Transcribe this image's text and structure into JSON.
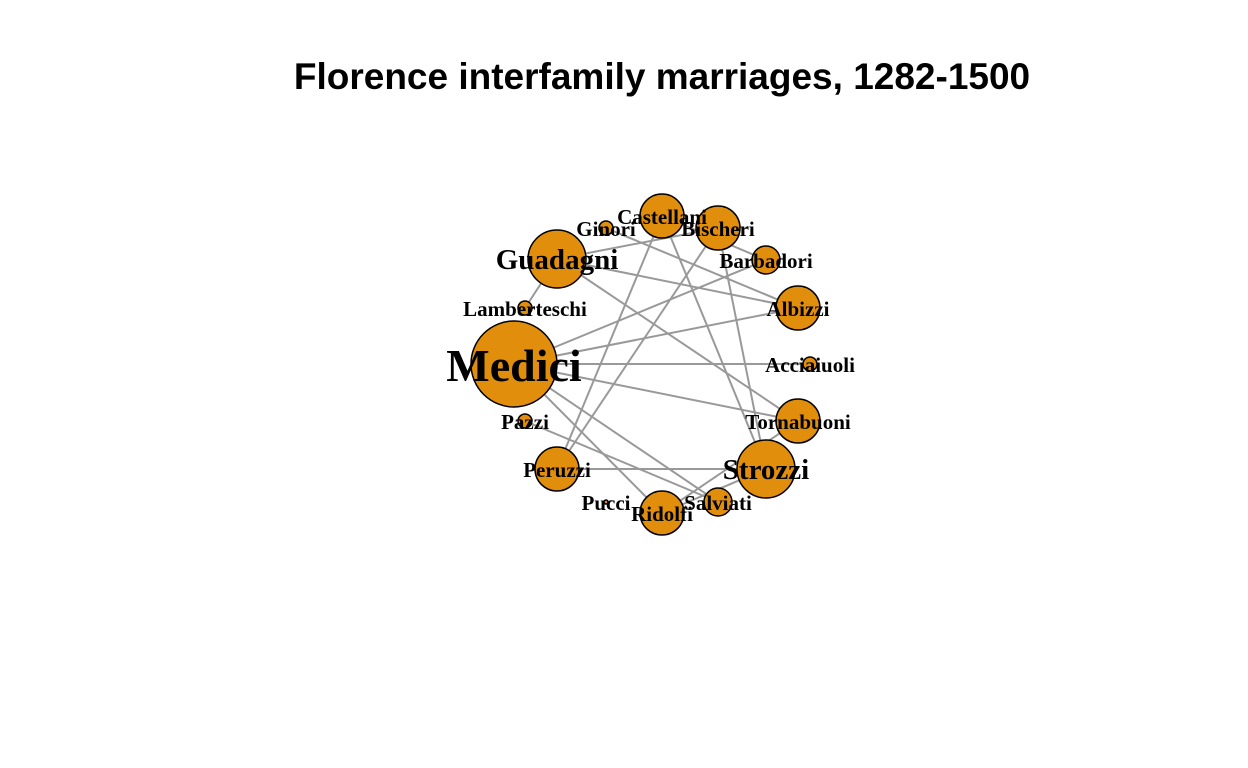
{
  "title": "Florence interfamily marriages, 1282-1500",
  "colors": {
    "node_fill": "#e08e0b",
    "node_stroke": "#000000",
    "edge": "#999999",
    "background": "#ffffff"
  },
  "nodes": [
    {
      "id": "Acciaiuoli",
      "label": "Acciaiuoli"
    },
    {
      "id": "Albizzi",
      "label": "Albizzi"
    },
    {
      "id": "Barbadori",
      "label": "Barbadori"
    },
    {
      "id": "Bischeri",
      "label": "Bischeri"
    },
    {
      "id": "Castellani",
      "label": "Castellani"
    },
    {
      "id": "Ginori",
      "label": "Ginori"
    },
    {
      "id": "Guadagni",
      "label": "Guadagni"
    },
    {
      "id": "Lamberteschi",
      "label": "Lamberteschi"
    },
    {
      "id": "Medici",
      "label": "Medici"
    },
    {
      "id": "Pazzi",
      "label": "Pazzi"
    },
    {
      "id": "Peruzzi",
      "label": "Peruzzi"
    },
    {
      "id": "Pucci",
      "label": "Pucci"
    },
    {
      "id": "Ridolfi",
      "label": "Ridolfi"
    },
    {
      "id": "Salviati",
      "label": "Salviati"
    },
    {
      "id": "Strozzi",
      "label": "Strozzi"
    },
    {
      "id": "Tornabuoni",
      "label": "Tornabuoni"
    }
  ],
  "edges": [
    [
      "Acciaiuoli",
      "Medici"
    ],
    [
      "Albizzi",
      "Ginori"
    ],
    [
      "Albizzi",
      "Guadagni"
    ],
    [
      "Albizzi",
      "Medici"
    ],
    [
      "Barbadori",
      "Castellani"
    ],
    [
      "Barbadori",
      "Medici"
    ],
    [
      "Bischeri",
      "Guadagni"
    ],
    [
      "Bischeri",
      "Peruzzi"
    ],
    [
      "Bischeri",
      "Strozzi"
    ],
    [
      "Castellani",
      "Peruzzi"
    ],
    [
      "Castellani",
      "Strozzi"
    ],
    [
      "Guadagni",
      "Lamberteschi"
    ],
    [
      "Guadagni",
      "Tornabuoni"
    ],
    [
      "Medici",
      "Ridolfi"
    ],
    [
      "Medici",
      "Salviati"
    ],
    [
      "Medici",
      "Tornabuoni"
    ],
    [
      "Pazzi",
      "Salviati"
    ],
    [
      "Peruzzi",
      "Strozzi"
    ],
    [
      "Ridolfi",
      "Strozzi"
    ],
    [
      "Ridolfi",
      "Tornabuoni"
    ]
  ]
}
